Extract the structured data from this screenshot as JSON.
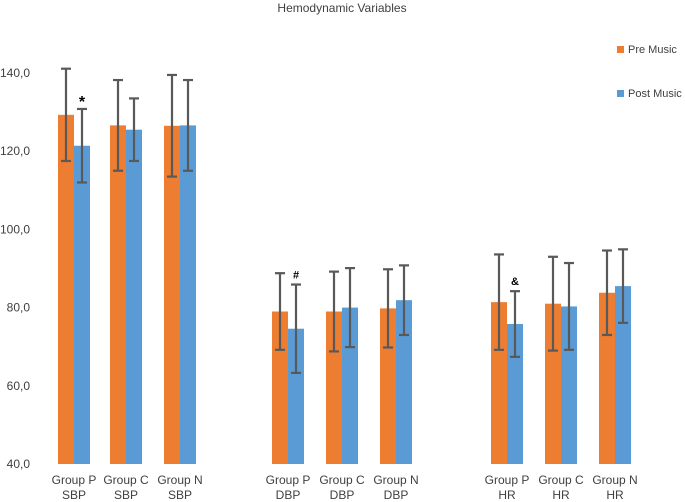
{
  "chart_data": {
    "type": "bar",
    "title": "Hemodynamic Variables",
    "xlabel": "",
    "ylabel": "",
    "ylim": [
      40,
      150
    ],
    "yticks": [
      40,
      60,
      80,
      100,
      120,
      140
    ],
    "ytick_labels": [
      "40,0",
      "60,0",
      "80,0",
      "100,0",
      "120,0",
      "140,0"
    ],
    "categories": [
      [
        "Group P",
        "SBP"
      ],
      [
        "Group C",
        "SBP"
      ],
      [
        "Group N",
        "SBP"
      ],
      [
        "Group P",
        "DBP"
      ],
      [
        "Group C",
        "DBP"
      ],
      [
        "Group N",
        "DBP"
      ],
      [
        "Group P",
        "HR"
      ],
      [
        "Group C",
        "HR"
      ],
      [
        "Group N",
        "HR"
      ]
    ],
    "series": [
      {
        "name": "Pre Music",
        "color": "#ED7D31",
        "values": [
          129.3,
          126.6,
          126.5,
          79.0,
          79.0,
          79.8,
          81.4,
          81.0,
          83.8
        ],
        "errors": [
          11.8,
          11.6,
          13.0,
          9.8,
          10.2,
          10.0,
          12.2,
          12.0,
          10.8
        ]
      },
      {
        "name": "Post Music",
        "color": "#5B9BD5",
        "values": [
          121.4,
          125.5,
          126.6,
          74.6,
          80.0,
          81.9,
          75.8,
          80.3,
          85.5
        ],
        "errors": [
          9.4,
          8.0,
          11.6,
          11.3,
          10.1,
          8.9,
          8.4,
          11.1,
          9.4
        ]
      }
    ],
    "annotations": [
      {
        "text": "*",
        "category_index": 0,
        "series_index": 1
      },
      {
        "text": "#",
        "category_index": 3,
        "series_index": 1
      },
      {
        "text": "&",
        "category_index": 6,
        "series_index": 1
      }
    ],
    "legend_position": "right"
  }
}
